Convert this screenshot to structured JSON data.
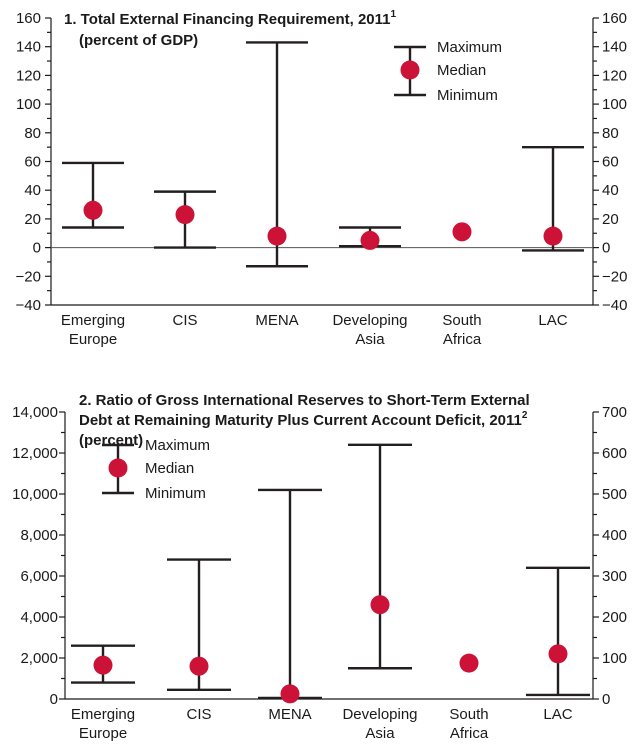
{
  "colors": {
    "median": "#cc1236",
    "range": "#231f20",
    "axis": "#1a1a1a"
  },
  "legend": {
    "maximum": "Maximum",
    "median": "Median",
    "minimum": "Minimum"
  },
  "chart_data": [
    {
      "type": "range",
      "title": "1. Total External Financing Requirement, 2011",
      "title_superscript": "1",
      "subtitle": "(percent of GDP)",
      "categories": [
        [
          "Emerging",
          "Europe"
        ],
        [
          "CIS"
        ],
        [
          "MENA"
        ],
        [
          "Developing",
          "Asia"
        ],
        [
          "South",
          "Africa"
        ],
        [
          "LAC"
        ]
      ],
      "series": [
        {
          "name": "Maximum",
          "values": [
            59,
            39,
            143,
            14,
            null,
            70
          ]
        },
        {
          "name": "Median",
          "values": [
            26,
            23,
            8,
            5,
            11,
            8
          ]
        },
        {
          "name": "Minimum",
          "values": [
            14,
            0,
            -13,
            1,
            null,
            -2
          ]
        }
      ],
      "left_axis": {
        "ylim": [
          -40,
          160
        ],
        "ticks": [
          -40,
          -20,
          0,
          20,
          40,
          60,
          80,
          100,
          120,
          140,
          160
        ]
      },
      "right_axis": {
        "ylim": [
          -40,
          160
        ],
        "ticks": [
          -40,
          -20,
          0,
          20,
          40,
          60,
          80,
          100,
          120,
          140,
          160
        ]
      },
      "zero_line": true,
      "legend_position": "top-right"
    },
    {
      "type": "range",
      "title_lines": [
        "2. Ratio of Gross International Reserves to Short-Term External",
        "Debt at Remaining Maturity Plus Current Account Deficit, 2011"
      ],
      "title_superscript": "2",
      "subtitle": "(percent)",
      "categories": [
        [
          "Emerging",
          "Europe"
        ],
        [
          "CIS"
        ],
        [
          "MENA"
        ],
        [
          "Developing",
          "Asia"
        ],
        [
          "South",
          "Africa"
        ],
        [
          "LAC"
        ]
      ],
      "series": [
        {
          "name": "Maximum",
          "values": [
            2600,
            6800,
            10200,
            12400,
            null,
            6400
          ]
        },
        {
          "name": "Median",
          "values": [
            1650,
            1600,
            250,
            4600,
            1750,
            2200
          ]
        },
        {
          "name": "Minimum",
          "values": [
            800,
            450,
            50,
            1500,
            null,
            200
          ]
        }
      ],
      "left_axis": {
        "ylim": [
          0,
          14000
        ],
        "ticks": [
          0,
          2000,
          4000,
          6000,
          8000,
          10000,
          12000,
          14000
        ]
      },
      "right_axis": {
        "ylim": [
          0,
          700
        ],
        "ticks": [
          0,
          100,
          200,
          300,
          400,
          500,
          600,
          700
        ]
      },
      "legend_position": "top-left"
    }
  ]
}
